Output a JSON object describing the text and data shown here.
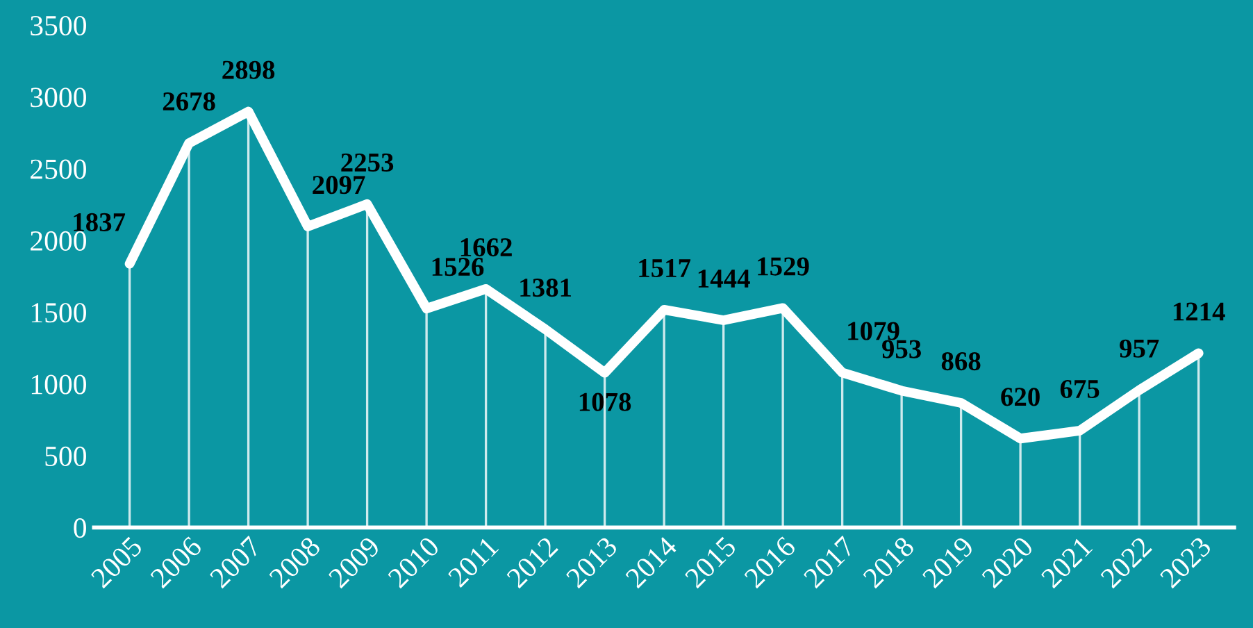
{
  "chart_data": {
    "type": "line",
    "categories": [
      "2005",
      "2006",
      "2007",
      "2008",
      "2009",
      "2010",
      "2011",
      "2012",
      "2013",
      "2014",
      "2015",
      "2016",
      "2017",
      "2018",
      "2019",
      "2020",
      "2021",
      "2022",
      "2023"
    ],
    "series": [
      {
        "color": "#ffffff",
        "values": [
          1837,
          2678,
          2898,
          2097,
          2253,
          1526,
          1662,
          1381,
          1078,
          1517,
          1444,
          1529,
          1079,
          953,
          868,
          620,
          675,
          957,
          1214
        ]
      }
    ],
    "ylim": [
      0,
      3500
    ],
    "yticks": [
      0,
      500,
      1000,
      1500,
      2000,
      2500,
      3000,
      3500
    ],
    "data_labels": true,
    "grid": "x",
    "marker": "none",
    "line_style": "solid"
  }
}
